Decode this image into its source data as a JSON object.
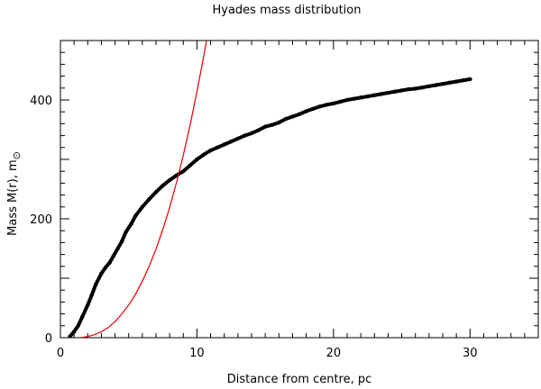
{
  "chart_data": {
    "type": "line",
    "title": "Hyades mass distribution",
    "xlabel": "Distance from centre, pc",
    "ylabel": "Mass M(r), m",
    "ylabel_symbol": "⊙",
    "xlim": [
      0,
      35
    ],
    "ylim": [
      0,
      500
    ],
    "x_major_ticks": [
      0,
      10,
      20,
      30
    ],
    "x_tick_labels": [
      "0",
      "10",
      "20",
      "30"
    ],
    "x_minor_step": 1,
    "y_major_ticks": [
      0,
      200,
      400
    ],
    "y_tick_labels": [
      "0",
      "200",
      "400"
    ],
    "y_minor_step": 20,
    "grid": false,
    "series": [
      {
        "style": "points",
        "color": "#000000",
        "x": [
          0.7,
          1.0,
          1.3,
          1.6,
          2.0,
          2.3,
          2.6,
          3.0,
          3.3,
          3.6,
          3.9,
          4.2,
          4.5,
          4.8,
          5.2,
          5.5,
          6.0,
          6.5,
          7.0,
          7.5,
          8.0,
          8.5,
          9.0,
          9.5,
          10.0,
          10.5,
          11.0,
          11.5,
          12.0,
          12.5,
          13.0,
          13.5,
          14.0,
          14.5,
          15.0,
          15.5,
          16.0,
          16.5,
          17.0,
          17.5,
          18.0,
          18.5,
          19.0,
          19.5,
          20.0,
          20.5,
          21.0,
          21.5,
          22.0,
          22.5,
          23.0,
          23.5,
          24.0,
          24.5,
          25.0,
          25.5,
          26.0,
          26.5,
          27.0,
          27.5,
          28.0,
          28.5,
          29.0,
          29.5,
          30.0
        ],
        "y": [
          2,
          10,
          20,
          35,
          55,
          72,
          90,
          108,
          118,
          126,
          138,
          150,
          162,
          178,
          192,
          205,
          220,
          233,
          245,
          256,
          265,
          273,
          280,
          290,
          300,
          308,
          315,
          320,
          325,
          330,
          335,
          340,
          344,
          349,
          355,
          358,
          362,
          368,
          372,
          376,
          381,
          385,
          389,
          392,
          394,
          397,
          400,
          402,
          404,
          406,
          408,
          410,
          412,
          414,
          416,
          418,
          419,
          421,
          423,
          425,
          427,
          429,
          431,
          433,
          435
        ]
      },
      {
        "style": "line",
        "color": "#e00000",
        "x": [
          1.5,
          2.0,
          2.5,
          3.0,
          3.5,
          4.0,
          4.5,
          5.0,
          5.5,
          6.0,
          6.5,
          7.0,
          7.5,
          8.0,
          8.5,
          9.0,
          9.5,
          10.0,
          10.5,
          11.0,
          11.25
        ],
        "y": [
          0,
          2,
          5,
          10,
          17,
          27,
          40,
          55,
          73,
          95,
          120,
          149,
          182,
          219,
          261,
          307,
          358,
          414,
          474,
          539,
          500
        ]
      }
    ]
  }
}
